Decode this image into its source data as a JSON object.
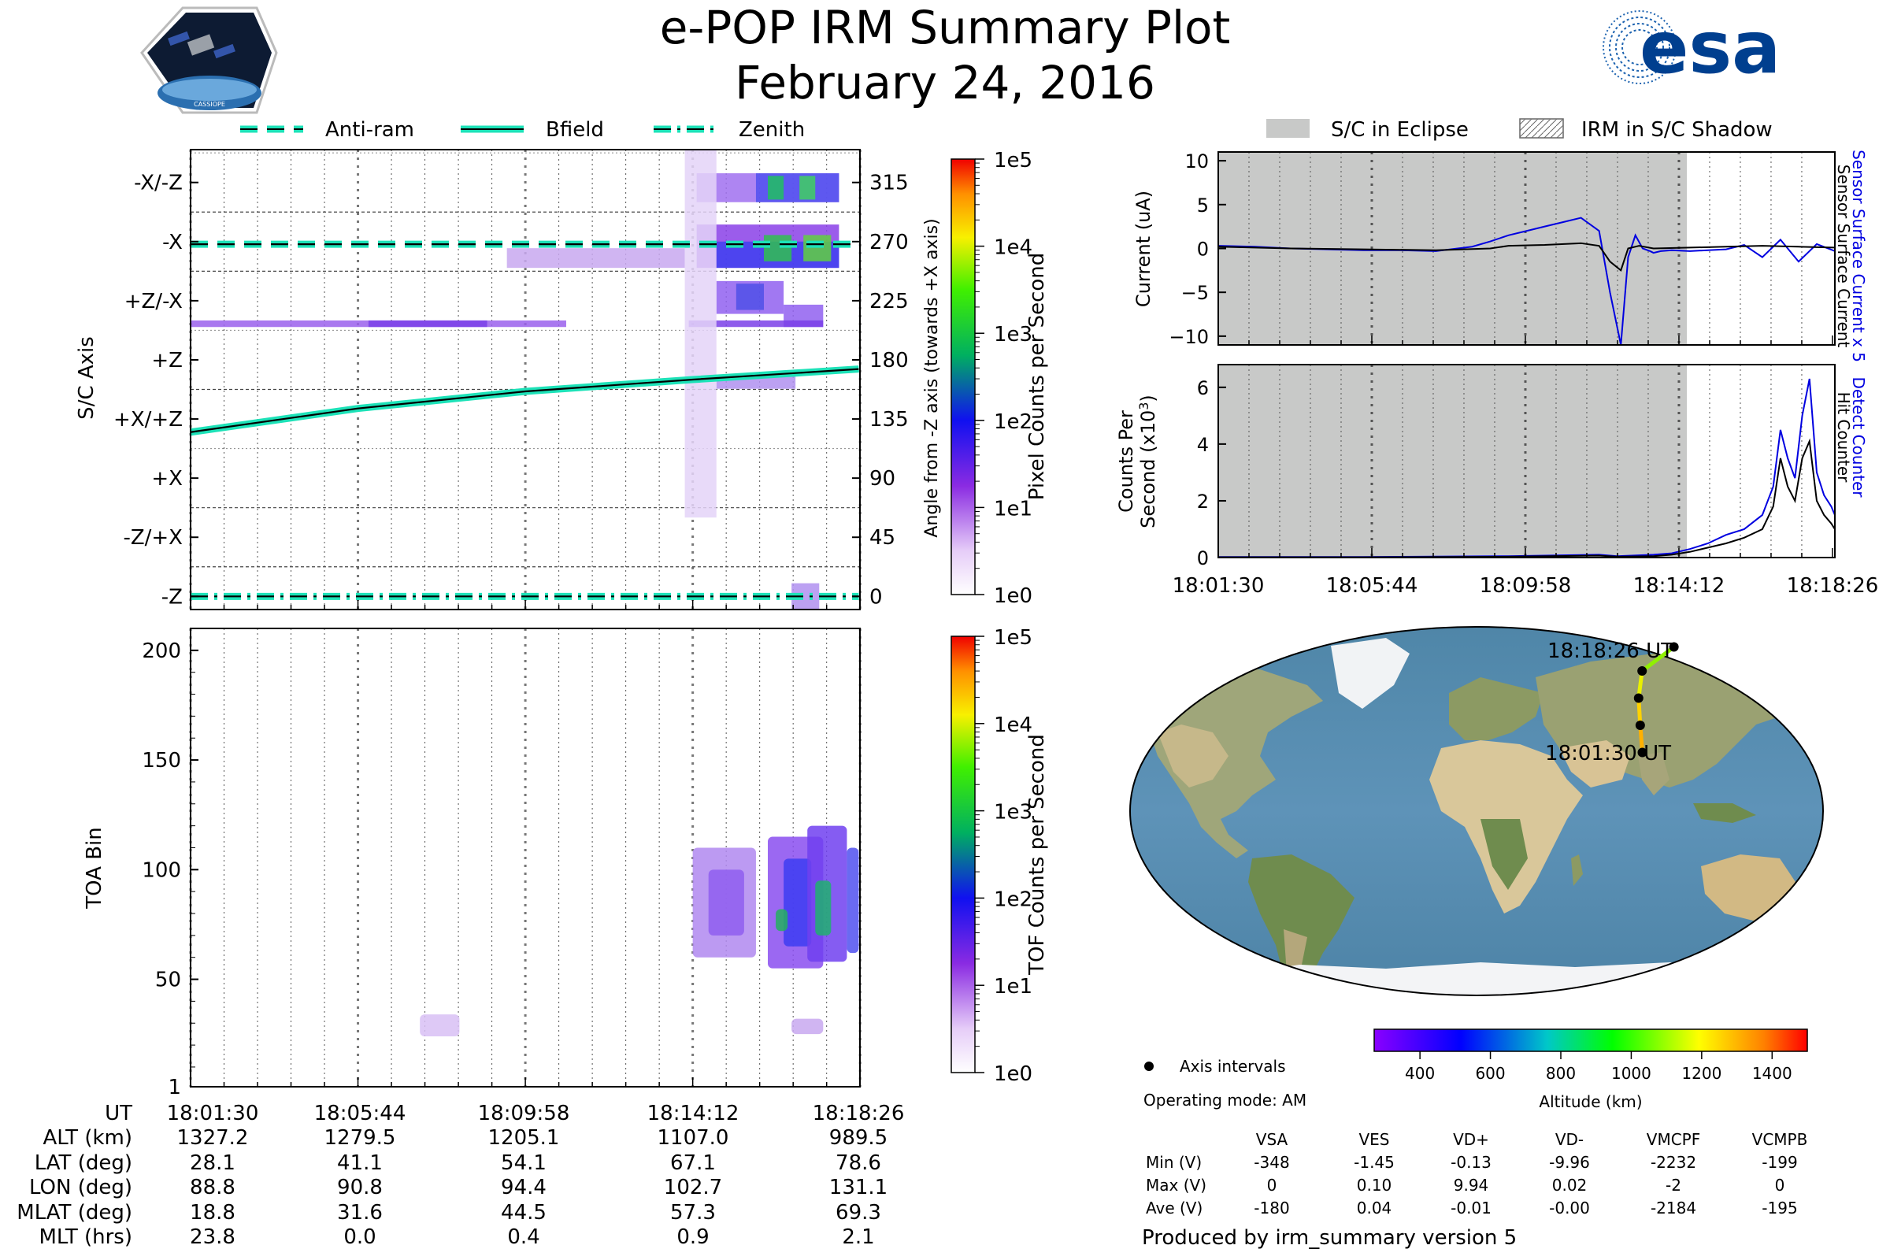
{
  "header": {
    "title": "e-POP IRM Summary Plot",
    "date": "February 24, 2016",
    "esa_logo_text": "esa",
    "cassiope_logo_text": "CASSIOPE"
  },
  "colors": {
    "teal": "#1de2b8",
    "eclipse": "#c8c9c8",
    "sensor_blue": "#0000e0"
  },
  "chart_data": [
    {
      "id": "sc_axis_spectrogram",
      "type": "heatmap",
      "ylabel": "S/C Axis",
      "ylabel_right": "Angle from -Z axis (towards +X axis)",
      "x_ticks": [
        "18:01:30",
        "18:05:44",
        "18:09:58",
        "18:14:12",
        "18:18:26"
      ],
      "y_axis_labels": [
        "-X/-Z",
        "-X",
        "+Z/-X",
        "+Z",
        "+X/+Z",
        "+X",
        "-Z/+X",
        "-Z"
      ],
      "y_right_ticks": [
        "315",
        "270",
        "225",
        "180",
        "135",
        "90",
        "45",
        "0"
      ],
      "ylim": [
        -10,
        340
      ],
      "legend": {
        "antiram": "Anti-ram",
        "bfield": "Bfield",
        "zenith": "Zenith"
      },
      "series": [
        {
          "name": "Anti-ram",
          "x": [
            0,
            16.9
          ],
          "y": [
            268,
            268
          ]
        },
        {
          "name": "Bfield",
          "x": [
            0,
            4.23,
            8.47,
            12.7,
            16.9
          ],
          "y": [
            125,
            143,
            156,
            165,
            173
          ]
        },
        {
          "name": "Zenith",
          "x": [
            0,
            16.9
          ],
          "y": [
            0,
            0
          ]
        }
      ],
      "colorbar": {
        "label": "Pixel Counts per Second",
        "ticks": [
          "1e0",
          "1e1",
          "1e2",
          "1e3",
          "1e4",
          "1e5"
        ],
        "scale": "log"
      }
    },
    {
      "id": "toa_spectrogram",
      "type": "heatmap",
      "ylabel": "TOA Bin",
      "y_ticks": [
        "1",
        "50",
        "100",
        "150",
        "200"
      ],
      "ylim": [
        1,
        210
      ],
      "colorbar": {
        "label": "TOF Counts per Second",
        "ticks": [
          "1e0",
          "1e1",
          "1e2",
          "1e3",
          "1e4",
          "1e5"
        ],
        "scale": "log"
      }
    },
    {
      "id": "current_plot",
      "type": "line",
      "ylabel": "Current (uA)",
      "ylabel_right_1": "Sensor Surface Current x 5",
      "ylabel_right_2": "Sensor Surface Current",
      "y_ticks": [
        "10",
        "5",
        "0",
        "−5",
        "−10"
      ],
      "ylim": [
        -11,
        11
      ],
      "legend": {
        "eclipse": "S/C in Eclipse",
        "shadow": "IRM in S/C Shadow"
      },
      "eclipse_fraction_end": 0.76,
      "series": [
        {
          "name": "Sensor Surface Current x 5",
          "x": [
            0,
            1,
            2,
            3,
            4,
            5,
            6,
            7,
            7.5,
            8,
            8.5,
            9,
            9.5,
            10,
            10.5,
            10.8,
            11.1,
            11.3,
            11.5,
            11.7,
            11.9,
            12,
            12.2,
            12.5,
            13,
            13.5,
            14,
            14.5,
            15,
            15.5,
            16,
            16.5,
            17
          ],
          "y": [
            0.3,
            0.2,
            0,
            -0.1,
            -0.2,
            -0.2,
            -0.3,
            0.2,
            0.8,
            1.5,
            2,
            2.5,
            3,
            3.5,
            2,
            -5,
            -11,
            -1,
            1.5,
            0,
            -0.3,
            -0.5,
            -0.3,
            -0.2,
            -0.3,
            -0.2,
            -0.1,
            0.4,
            -1,
            1,
            -1.5,
            0.5,
            -0.3
          ]
        },
        {
          "name": "Sensor Surface Current",
          "x": [
            0,
            2,
            4,
            6,
            7.5,
            8,
            9,
            10,
            10.5,
            10.8,
            11.1,
            11.3,
            11.6,
            12,
            13,
            14,
            15,
            16,
            17
          ],
          "y": [
            0.2,
            0,
            -0.1,
            -0.2,
            0,
            0.3,
            0.4,
            0.6,
            0.3,
            -1.5,
            -2.5,
            0,
            0.3,
            0,
            0.1,
            0.2,
            0.3,
            0.2,
            0.1
          ]
        }
      ]
    },
    {
      "id": "counts_plot",
      "type": "line",
      "ylabel_1": "Counts Per",
      "ylabel_2": "Second (x10",
      "ylabel_exp": "3",
      "ylabel_3": ")",
      "ylabel_right_1": "Detect Counter",
      "ylabel_right_2": "Hit Counter",
      "x_ticks": [
        "18:01:30",
        "18:05:44",
        "18:09:58",
        "18:14:12",
        "18:18:26"
      ],
      "y_ticks": [
        "6",
        "4",
        "2",
        "0"
      ],
      "ylim": [
        0,
        6.8
      ],
      "series": [
        {
          "name": "Detect Counter",
          "x": [
            0,
            4,
            8,
            10.5,
            11,
            12,
            12.5,
            13,
            13.5,
            14,
            14.5,
            15,
            15.3,
            15.5,
            15.7,
            15.9,
            16.1,
            16.3,
            16.5,
            16.7,
            16.9,
            17
          ],
          "y": [
            0.02,
            0.02,
            0.05,
            0.1,
            0.05,
            0.1,
            0.15,
            0.3,
            0.5,
            0.8,
            1.0,
            1.5,
            2.5,
            4.5,
            3.5,
            2.8,
            5,
            6.3,
            3,
            2.2,
            1.8,
            1.5
          ]
        },
        {
          "name": "Hit Counter",
          "x": [
            0,
            4,
            8,
            10.5,
            11,
            12,
            12.5,
            13,
            13.5,
            14,
            14.5,
            15,
            15.3,
            15.5,
            15.7,
            15.9,
            16.1,
            16.3,
            16.5,
            16.7,
            16.9,
            17
          ],
          "y": [
            0.01,
            0.01,
            0.03,
            0.07,
            0.03,
            0.05,
            0.1,
            0.2,
            0.35,
            0.5,
            0.7,
            1.0,
            1.8,
            3.5,
            2.5,
            2.0,
            3.5,
            4.1,
            2.0,
            1.5,
            1.2,
            1.0
          ]
        }
      ]
    },
    {
      "id": "orbit_map",
      "type": "scatter",
      "labels": {
        "end": "18:18:26 UT",
        "start": "18:01:30 UT"
      },
      "points": [
        {
          "lon": 88.8,
          "lat": 28.1
        },
        {
          "lon": 90.8,
          "lat": 41.1
        },
        {
          "lon": 94.4,
          "lat": 54.1
        },
        {
          "lon": 102.7,
          "lat": 67.1
        },
        {
          "lon": 131.1,
          "lat": 78.6
        }
      ],
      "colorbar": {
        "label": "Altitude (km)",
        "ticks": [
          "400",
          "600",
          "800",
          "1000",
          "1200",
          "1400"
        ]
      },
      "legend": {
        "axis_intervals": "Axis intervals"
      },
      "operating_mode": "Operating mode: AM"
    }
  ],
  "ephemeris": {
    "row_labels": [
      "UT",
      "ALT (km)",
      "LAT (deg)",
      "LON (deg)",
      "MLAT (deg)",
      "MLT (hrs)"
    ],
    "columns": [
      [
        "18:01:30",
        "1327.2",
        "28.1",
        "88.8",
        "18.8",
        "23.8"
      ],
      [
        "18:05:44",
        "1279.5",
        "41.1",
        "90.8",
        "31.6",
        "0.0"
      ],
      [
        "18:09:58",
        "1205.1",
        "54.1",
        "94.4",
        "44.5",
        "0.4"
      ],
      [
        "18:14:12",
        "1107.0",
        "67.1",
        "102.7",
        "57.3",
        "0.9"
      ],
      [
        "18:18:26",
        "989.5",
        "78.6",
        "131.1",
        "69.3",
        "2.1"
      ]
    ]
  },
  "voltages": {
    "headers": [
      "VSA",
      "VES",
      "VD+",
      "VD-",
      "VMCPF",
      "VCMPB"
    ],
    "rows": [
      {
        "label": "Min (V)",
        "values": [
          "-348",
          "-1.45",
          "-0.13",
          "-9.96",
          "-2232",
          "-199"
        ]
      },
      {
        "label": "Max (V)",
        "values": [
          "0",
          "0.10",
          "9.94",
          "0.02",
          "-2",
          "0"
        ]
      },
      {
        "label": "Ave (V)",
        "values": [
          "-180",
          "0.04",
          "-0.01",
          "-0.00",
          "-2184",
          "-195"
        ]
      }
    ]
  },
  "footer": {
    "produced_by": "Produced by irm_summary version 5"
  }
}
